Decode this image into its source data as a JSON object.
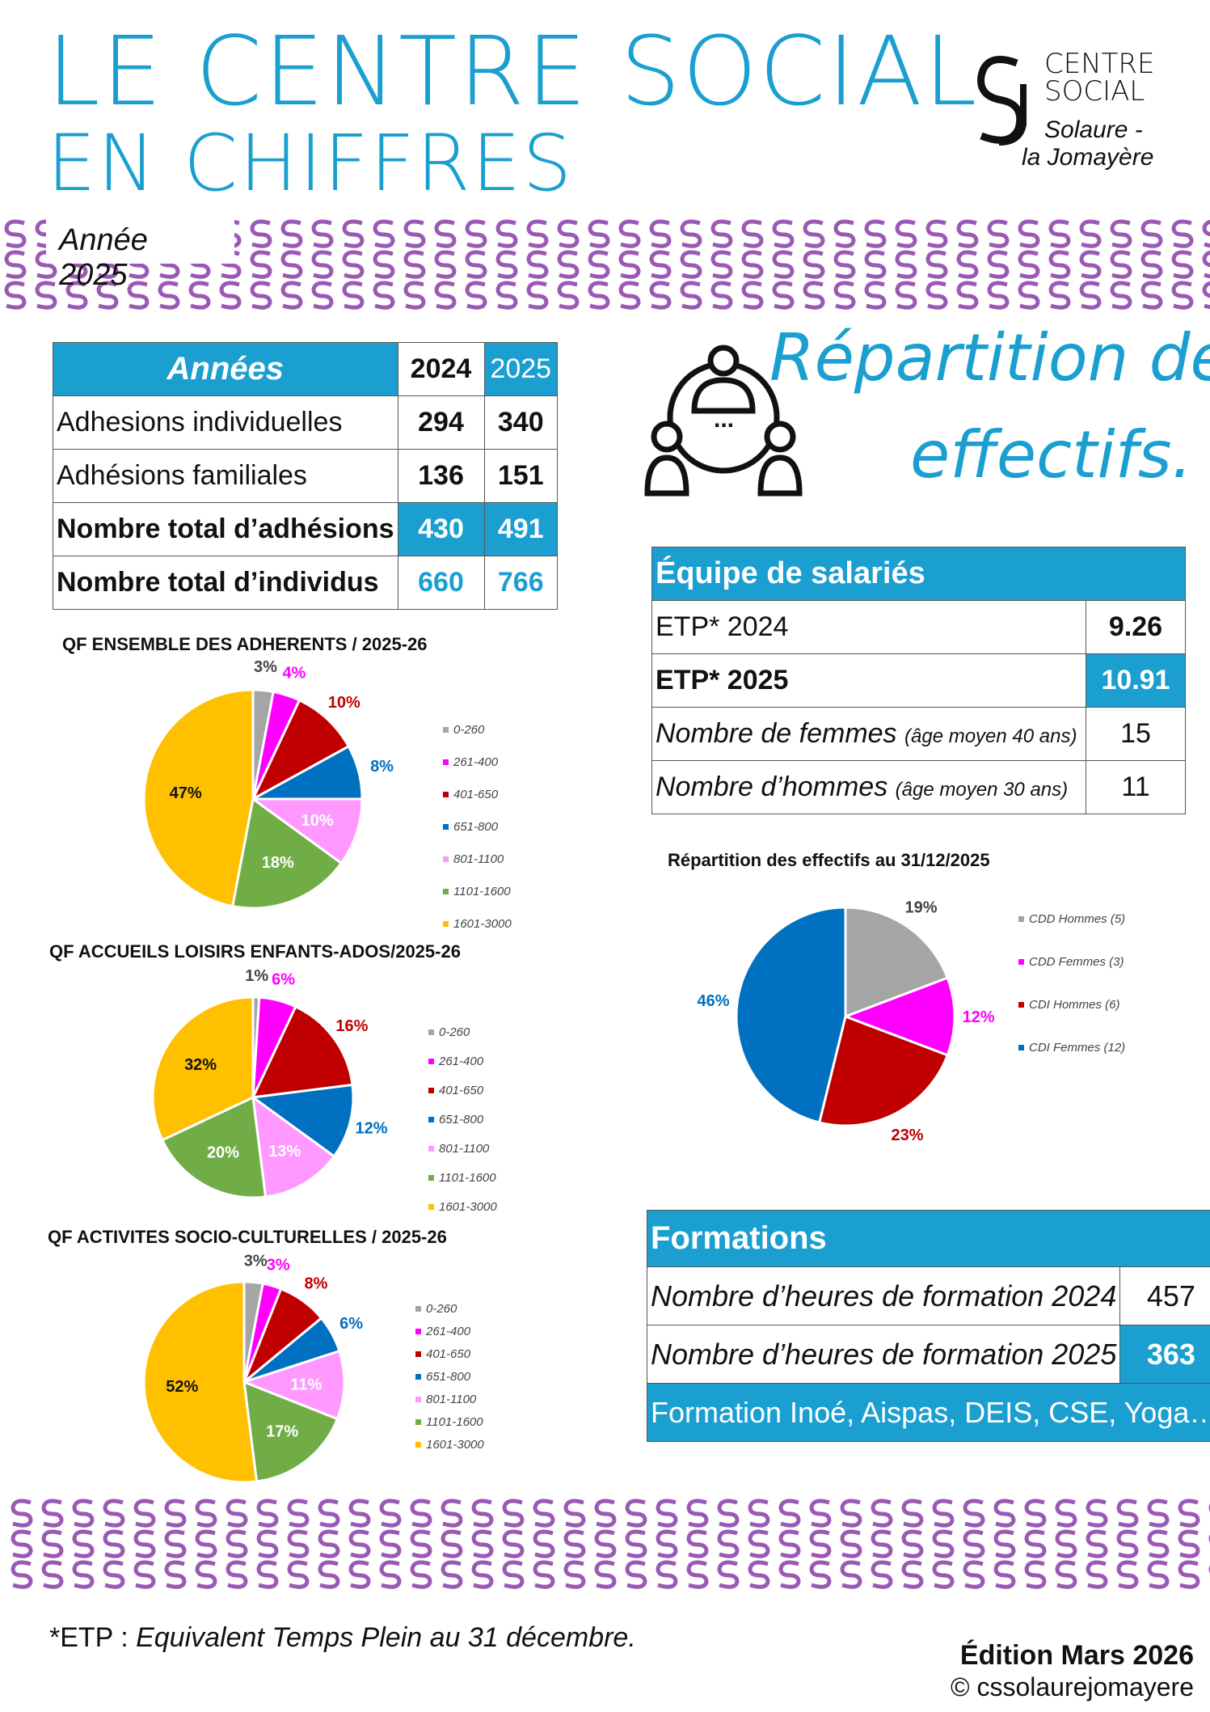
{
  "header": {
    "title_line1": "LE CENTRE SOCIAL",
    "title_line2": "EN CHIFFRES",
    "year": "Année 2025",
    "logo": {
      "line1": "CENTRE",
      "line2": "SOCIAL",
      "line3": "Solaure -",
      "line4": "la Jomayère"
    }
  },
  "colors": {
    "accent": "#1a9fd0",
    "pattern": "#9b59b6",
    "gray": "#a5a5a5",
    "magenta": "#ff00ff",
    "darkred": "#c00000",
    "blue": "#0070c0",
    "pink": "#ff99ff",
    "green": "#70ad47",
    "yellow": "#ffc000"
  },
  "adhesions": {
    "header": [
      "Années",
      "2024",
      "2025"
    ],
    "rows": [
      [
        "Adhesions individuelles",
        "294",
        "340"
      ],
      [
        "Adhésions familiales",
        "136",
        "151"
      ],
      [
        "Nombre total d’adhésions",
        "430",
        "491"
      ],
      [
        "Nombre total d’individus",
        "660",
        "766"
      ]
    ]
  },
  "repartition": {
    "title_line1": "Répartition des",
    "title_line2": "effectifs.",
    "icon": "team-meeting-icon"
  },
  "equipe": {
    "title": "Équipe de salariés",
    "rows": [
      {
        "label": "ETP* 2024",
        "note": "",
        "value": "9.26"
      },
      {
        "label": "ETP* 2025",
        "note": "",
        "value": "10.91"
      },
      {
        "label": "Nombre de femmes",
        "note": "(âge moyen 40 ans)",
        "value": "15"
      },
      {
        "label": "Nombre d’hommes",
        "note": "(âge moyen 30 ans)",
        "value": "11"
      }
    ]
  },
  "chart_data": [
    {
      "type": "pie",
      "title": "QF ENSEMBLE DES ADHERENTS / 2025-26",
      "categories": [
        "0-260",
        "261-400",
        "401-650",
        "651-800",
        "801-1100",
        "1101-1600",
        "1601-3000"
      ],
      "values": [
        3,
        4,
        10,
        8,
        10,
        18,
        47
      ],
      "labels": [
        "3%",
        "4%",
        "10%",
        "8%",
        "10%",
        "18%",
        "47%"
      ],
      "legend": "right"
    },
    {
      "type": "pie",
      "title": "QF ACCUEILS LOISIRS ENFANTS-ADOS/2025-26",
      "categories": [
        "0-260",
        "261-400",
        "401-650",
        "651-800",
        "801-1100",
        "1101-1600",
        "1601-3000"
      ],
      "values": [
        1,
        6,
        16,
        12,
        13,
        20,
        32
      ],
      "labels": [
        "1%",
        "6%",
        "16%",
        "12%",
        "13%",
        "20%",
        "32%"
      ],
      "legend": "right"
    },
    {
      "type": "pie",
      "title": "QF ACTIVITES SOCIO-CULTURELLES / 2025-26",
      "categories": [
        "0-260",
        "261-400",
        "401-650",
        "651-800",
        "801-1100",
        "1101-1600",
        "1601-3000"
      ],
      "values": [
        3,
        3,
        8,
        6,
        11,
        17,
        52
      ],
      "labels": [
        "3%",
        "3%",
        "8%",
        "6%",
        "11%",
        "17%",
        "52%"
      ],
      "legend": "right"
    },
    {
      "type": "pie",
      "title": "Répartition des effectifs au 31/12/2025",
      "categories": [
        "CDD Hommes (5)",
        "CDD Femmes (3)",
        "CDI Hommes (6)",
        "CDI Femmes (12)"
      ],
      "values": [
        5,
        3,
        6,
        12
      ],
      "labels": [
        "19%",
        "12%",
        "23%",
        "46%"
      ],
      "legend": "right"
    }
  ],
  "formations": {
    "title": "Formations",
    "rows": [
      [
        "Nombre d’heures de formation 2024",
        "457"
      ],
      [
        "Nombre d’heures de formation 2025",
        "363"
      ]
    ],
    "footer": "Formation Inoé, Aispas, DEIS, CSE,  Yoga…"
  },
  "footer": {
    "note_prefix": "*ETP : ",
    "note": "Equivalent Temps Plein au 31 décembre.",
    "edition": "Édition Mars 2026",
    "copyright": "© cssolaurejomayere"
  }
}
